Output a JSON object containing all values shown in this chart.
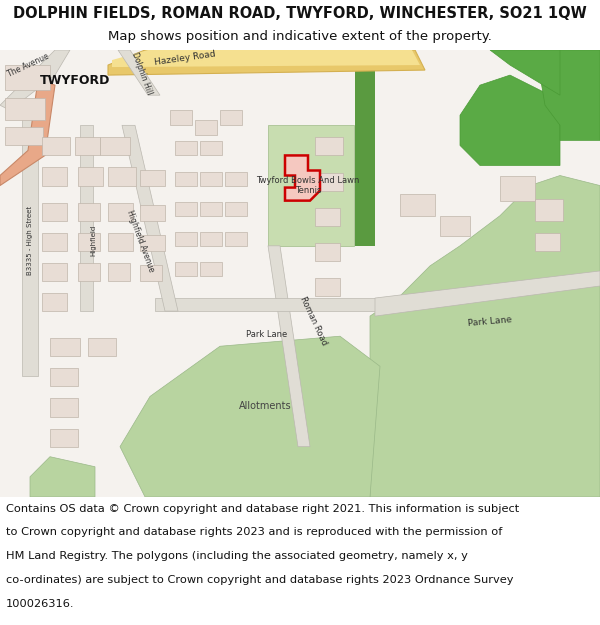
{
  "title_line1": "DOLPHIN FIELDS, ROMAN ROAD, TWYFORD, WINCHESTER, SO21 1QW",
  "title_line2": "Map shows position and indicative extent of the property.",
  "footer_lines": [
    "Contains OS data © Crown copyright and database right 2021. This information is subject",
    "to Crown copyright and database rights 2023 and is reproduced with the permission of",
    "HM Land Registry. The polygons (including the associated geometry, namely x, y",
    "co-ordinates) are subject to Crown copyright and database rights 2023 Ordnance Survey",
    "100026316."
  ],
  "bg_color": "#ffffff",
  "map_bg": "#f5f2ee",
  "title_fontsize": 10.5,
  "subtitle_fontsize": 9.5,
  "footer_fontsize": 8.2
}
